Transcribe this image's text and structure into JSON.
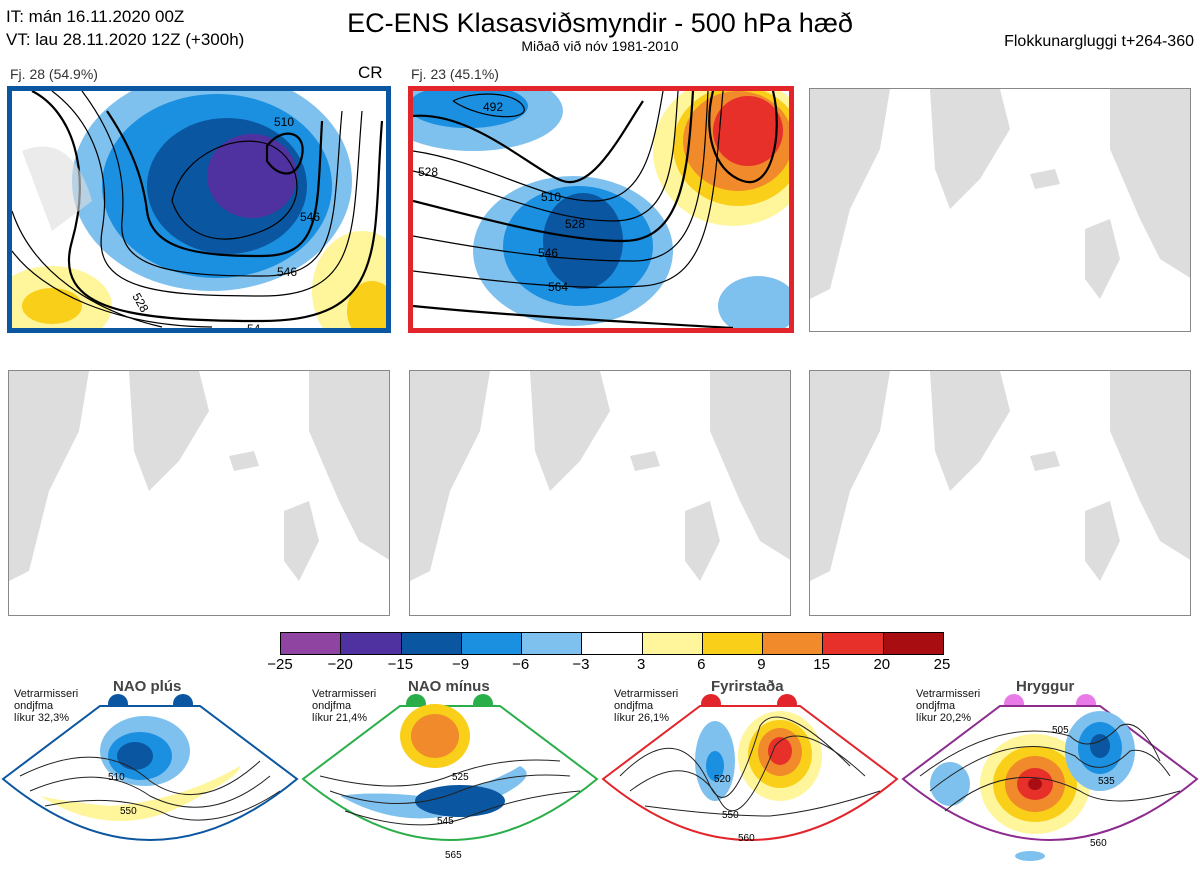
{
  "header": {
    "it_line": "IT: mán 16.11.2020 00Z",
    "vt_line": "VT: lau 28.11.2020 12Z  (+300h)",
    "title": "EC-ENS Klasasviðsmyndir - 500 hPa hæð",
    "subtitle": "Miðað við nóv 1981-2010",
    "window": "Flokkunargluggi t+264-360"
  },
  "panels": [
    {
      "label": "Fj. 28 (54.9%)",
      "tag": "CR",
      "contour_labels": [
        "510",
        "528",
        "546",
        "528",
        "546",
        "54"
      ]
    },
    {
      "label": "Fj. 23 (45.1%)",
      "contour_labels": [
        "492",
        "510",
        "528",
        "546",
        "564",
        "528"
      ]
    }
  ],
  "colorbar": {
    "ticks": [
      "−25",
      "−20",
      "−15",
      "−9",
      "−6",
      "−3",
      "3",
      "6",
      "9",
      "15",
      "20",
      "25"
    ],
    "colors": [
      "#8e44a0",
      "#5031a0",
      "#0a56a0",
      "#1b8fe0",
      "#7fc1ee",
      "#ffffff",
      "#fff59a",
      "#f9cf1a",
      "#f08a2a",
      "#e8302b",
      "#a80d12"
    ]
  },
  "climatology": [
    {
      "name": "NAO plús",
      "note": [
        "Vetrarmisseri",
        "ondjfma",
        "líkur 32,3%"
      ],
      "color": "#0a56a0",
      "labels": [
        "510",
        "550"
      ]
    },
    {
      "name": "NAO mínus",
      "note": [
        "Vetrarmisseri",
        "ondjfma",
        "líkur 21,4%"
      ],
      "color": "#2aae4a",
      "labels": [
        "525",
        "545",
        "565"
      ]
    },
    {
      "name": "Fyrirstaða",
      "note": [
        "Vetrarmisseri",
        "ondjfma",
        "líkur 26,1%"
      ],
      "color": "#e2252b",
      "labels": [
        "520",
        "550",
        "560"
      ]
    },
    {
      "name": "Hryggur",
      "note": [
        "Vetrarmisseri",
        "ondjfma",
        "líkur 20,2%"
      ],
      "color": "#8d2b8f",
      "labels": [
        "505",
        "535",
        "560"
      ]
    }
  ]
}
